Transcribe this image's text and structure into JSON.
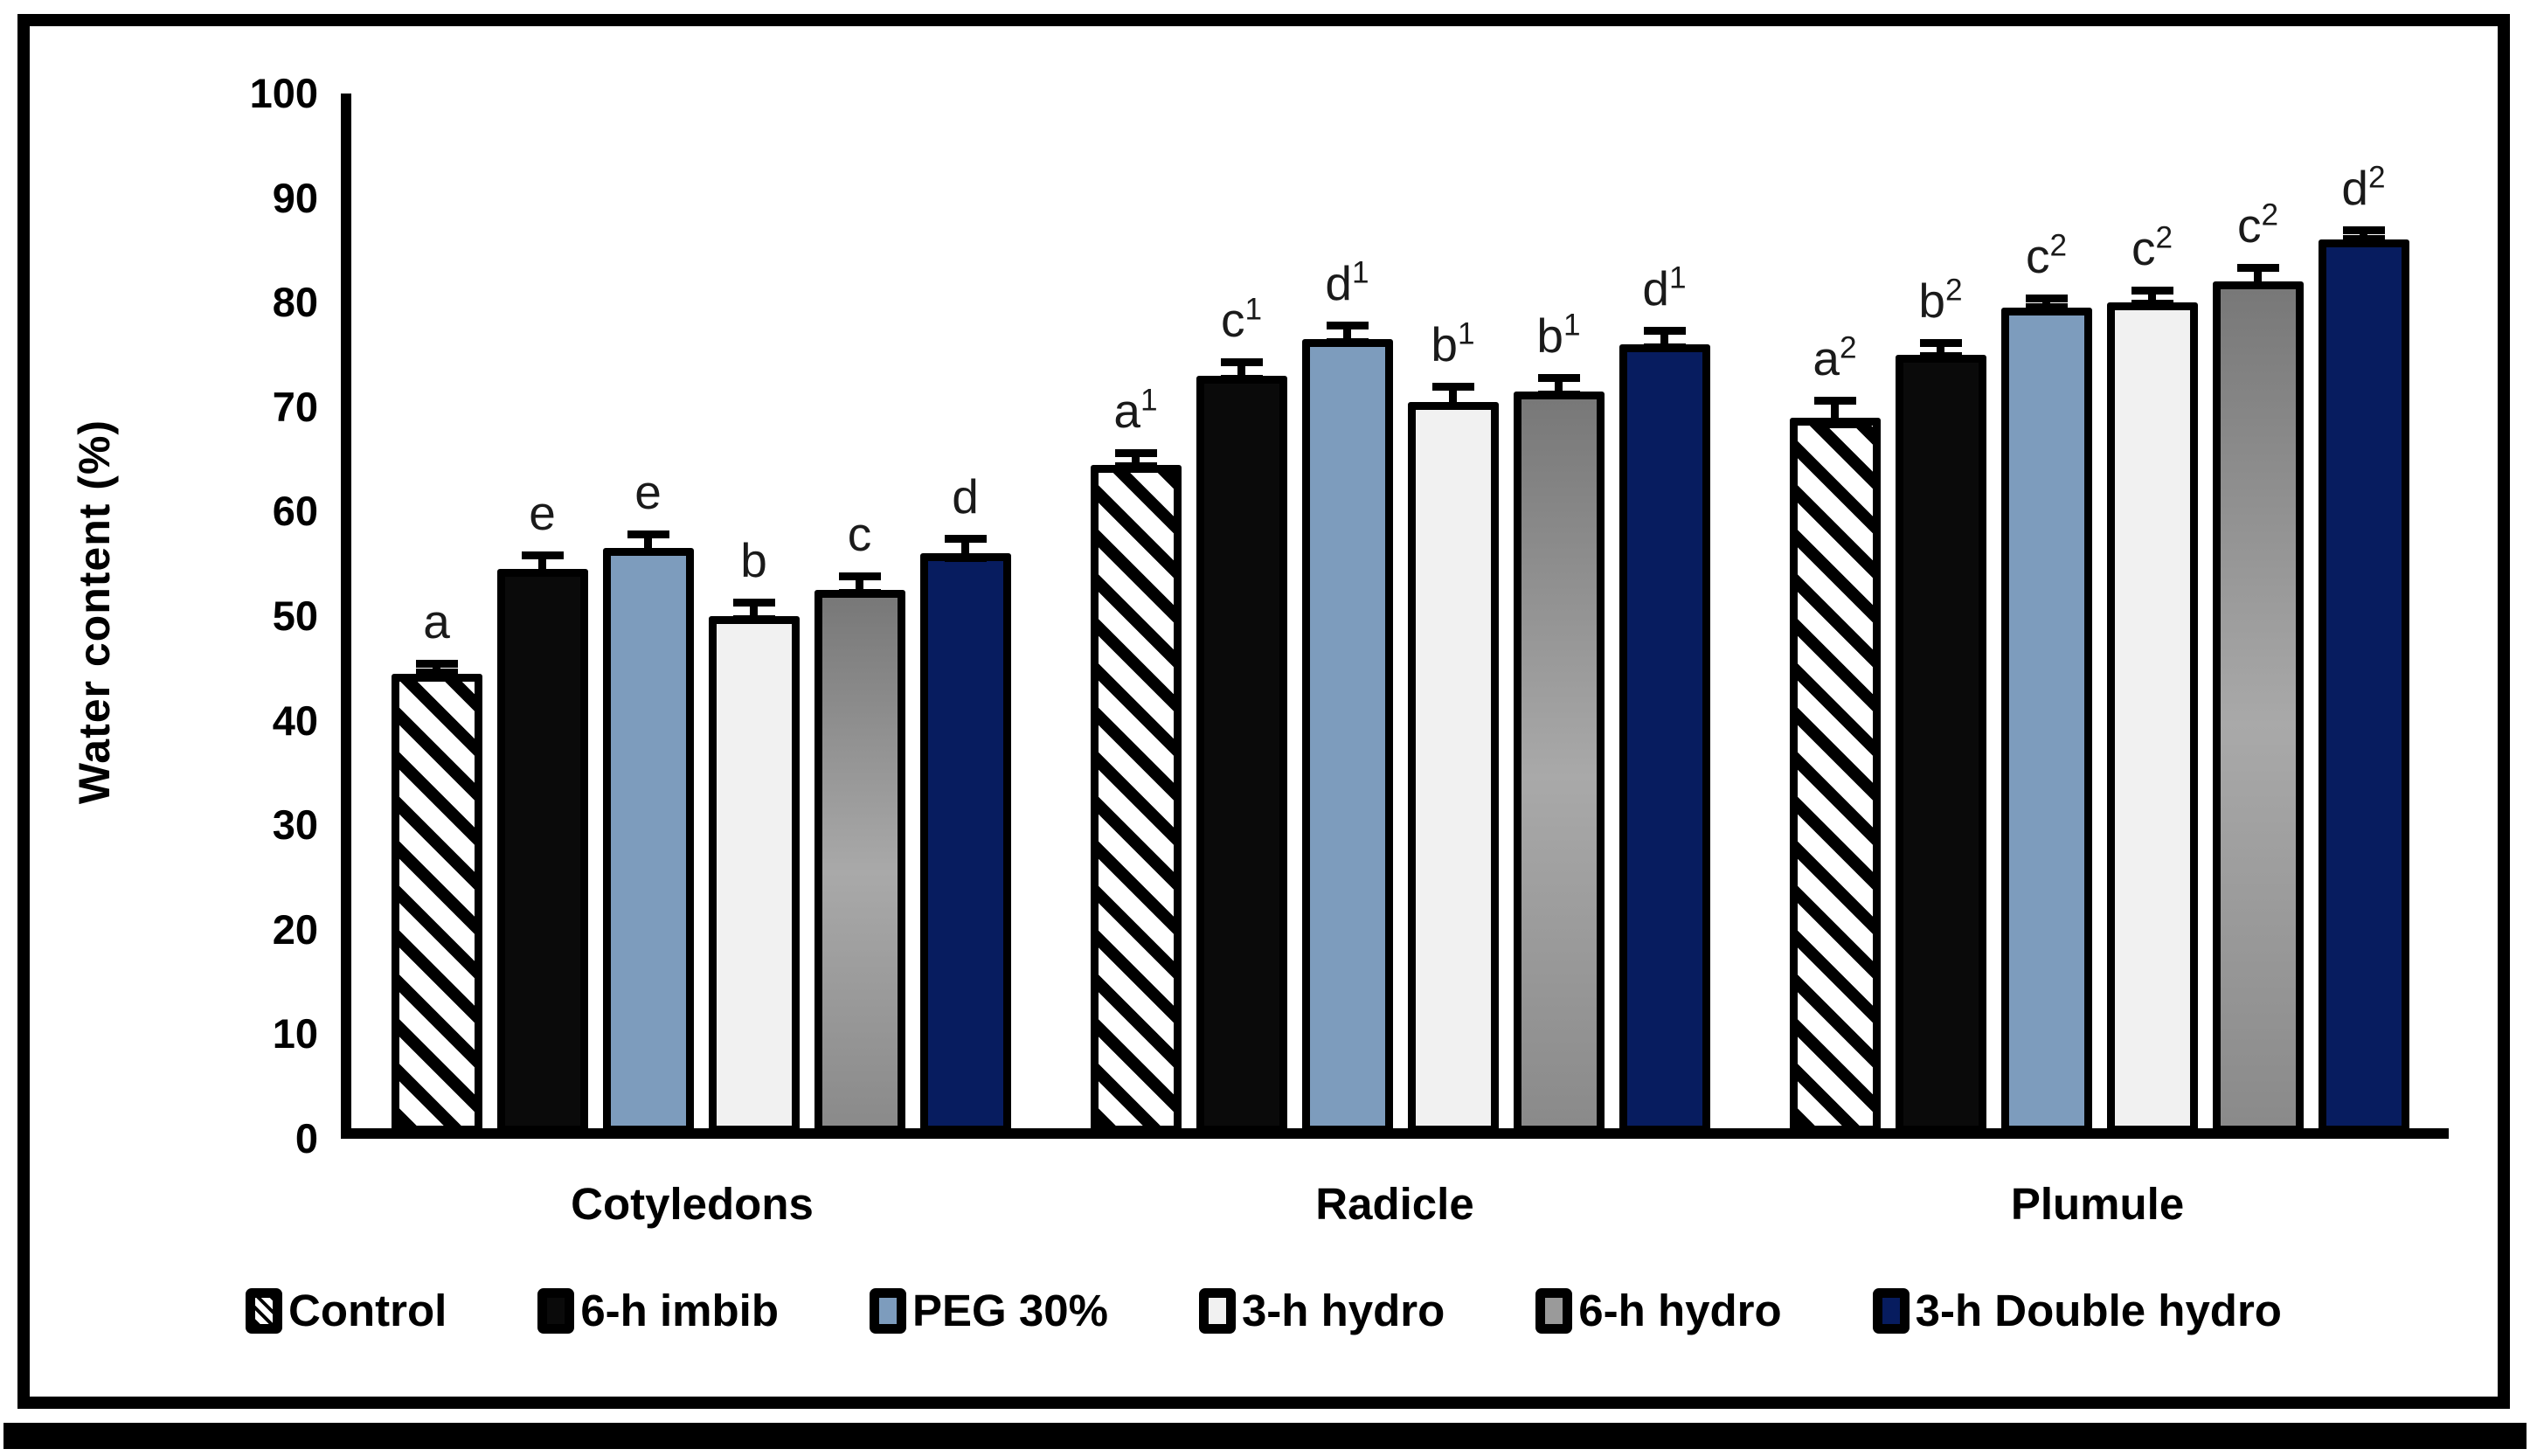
{
  "figure": {
    "description": "Grouped bar chart of seed tissue water content with SE error bars and significance letters",
    "border_color": "#000000",
    "background_color": "#ffffff"
  },
  "chart_data": {
    "type": "bar",
    "title": "",
    "xlabel": "",
    "ylabel": "Water content (%)",
    "ylim": [
      0,
      100
    ],
    "ytick_step": 10,
    "yticks": [
      "0",
      "10",
      "20",
      "30",
      "40",
      "50",
      "60",
      "70",
      "80",
      "90",
      "100"
    ],
    "grid": false,
    "legend_position": "bottom",
    "categories": [
      "Cotyledons",
      "Radicle",
      "Plumule"
    ],
    "series": [
      {
        "name": "Control",
        "swatch": "hatch",
        "color": "#000000",
        "fill_note": "white with black diagonal hatch",
        "values": [
          44,
          64,
          68.5
        ],
        "errors": [
          0.8,
          1.0,
          1.5
        ],
        "sig_letters": [
          "a",
          "a1",
          "a2"
        ]
      },
      {
        "name": "6-h imbib",
        "swatch": "black",
        "color": "#0a0a0a",
        "values": [
          54,
          72.5,
          74.5
        ],
        "errors": [
          1.2,
          1.2,
          1.0
        ],
        "sig_letters": [
          "e",
          "c1",
          "b2"
        ]
      },
      {
        "name": "PEG 30%",
        "swatch": "blue",
        "color": "#7d9cbd",
        "values": [
          56,
          76,
          79
        ],
        "errors": [
          1.2,
          1.2,
          0.8
        ],
        "sig_letters": [
          "e",
          "d1",
          "c2"
        ]
      },
      {
        "name": "3-h hydro",
        "swatch": "white",
        "color": "#f1f1f1",
        "values": [
          49.5,
          70,
          79.5
        ],
        "errors": [
          1.2,
          1.3,
          1.0
        ],
        "sig_letters": [
          "b",
          "b1",
          "c2"
        ]
      },
      {
        "name": "6-h hydro",
        "swatch": "gray",
        "color": "#9a9a9a",
        "fill_note": "vertical gray gradient",
        "values": [
          52,
          71,
          81.5
        ],
        "errors": [
          1.2,
          1.2,
          1.2
        ],
        "sig_letters": [
          "c",
          "b1",
          "c2"
        ]
      },
      {
        "name": "3-h Double hydro",
        "swatch": "navy",
        "color": "#071c5f",
        "values": [
          55.5,
          75.5,
          85.5
        ],
        "errors": [
          1.3,
          1.2,
          0.8
        ],
        "sig_letters": [
          "d",
          "d1",
          "d2"
        ]
      }
    ]
  }
}
